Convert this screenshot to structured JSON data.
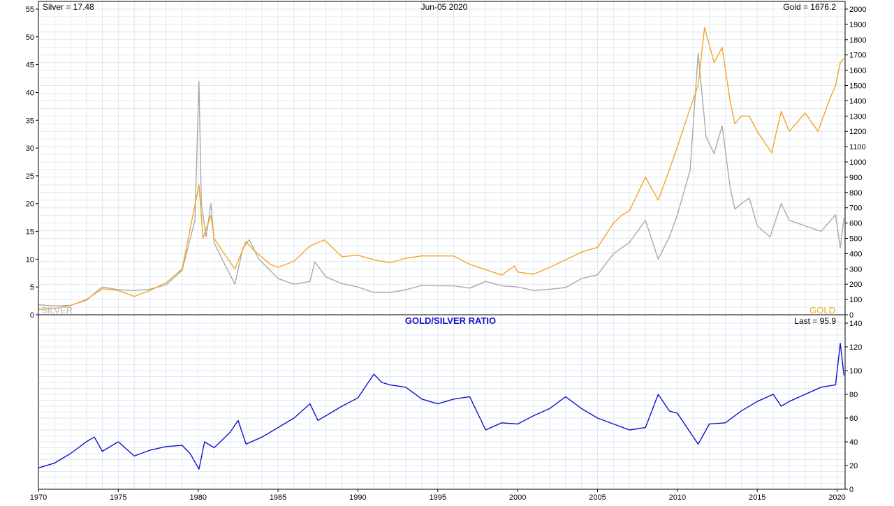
{
  "header": {
    "silver_readout": "Silver = 17.48",
    "date": "Jun-05  2020",
    "gold_readout": "Gold = 1676.2"
  },
  "lower_panel": {
    "title": "GOLD/SILVER RATIO",
    "last_readout": "Last = 95.9"
  },
  "legend": {
    "silver_label": "SILVER",
    "gold_label": "GOLD"
  },
  "colors": {
    "gold": "#f5a623",
    "silver": "#aaaaaa",
    "ratio": "#1111cc",
    "grid": "#dfe8f3",
    "axis": "#000000",
    "title_text": "#1111cc"
  },
  "chart_data": [
    {
      "type": "line",
      "title": "",
      "x_axis": {
        "type": "date",
        "range": [
          1970,
          2020.5
        ],
        "tick_labels": [
          "1970",
          "1975",
          "1980",
          "1985",
          "1990",
          "1995",
          "2000",
          "2005",
          "2010",
          "2015",
          "2020"
        ]
      },
      "y_axes": {
        "left": {
          "label": "",
          "range": [
            0,
            55
          ],
          "tick_labels": [
            "0",
            "5",
            "10",
            "15",
            "20",
            "25",
            "30",
            "35",
            "40",
            "45",
            "50",
            "55"
          ]
        },
        "right": {
          "label": "",
          "range": [
            0,
            2000
          ],
          "tick_labels": [
            "0",
            "100",
            "200",
            "300",
            "400",
            "500",
            "600",
            "700",
            "800",
            "900",
            "1000",
            "1100",
            "1200",
            "1300",
            "1400",
            "1500",
            "1600",
            "1700",
            "1800",
            "1900",
            "2000"
          ]
        }
      },
      "grid": true,
      "legend_placement": "bottom-left (SILVER) and bottom-right (GOLD)",
      "series": [
        {
          "name": "SILVER",
          "axis": "left",
          "points": [
            [
              1970,
              1.8
            ],
            [
              1971,
              1.6
            ],
            [
              1972,
              1.7
            ],
            [
              1973,
              2.6
            ],
            [
              1974,
              5
            ],
            [
              1975,
              4.5
            ],
            [
              1976,
              4.4
            ],
            [
              1977,
              4.6
            ],
            [
              1978,
              5.4
            ],
            [
              1979,
              8
            ],
            [
              1979.8,
              17
            ],
            [
              1980.05,
              42
            ],
            [
              1980.2,
              20
            ],
            [
              1980.5,
              14
            ],
            [
              1980.8,
              20
            ],
            [
              1981,
              13
            ],
            [
              1981.5,
              10
            ],
            [
              1982.3,
              5.5
            ],
            [
              1982.8,
              12
            ],
            [
              1983.2,
              13.5
            ],
            [
              1983.8,
              10
            ],
            [
              1984.5,
              8
            ],
            [
              1985,
              6.5
            ],
            [
              1986,
              5.5
            ],
            [
              1987,
              6
            ],
            [
              1987.3,
              9.5
            ],
            [
              1988,
              6.8
            ],
            [
              1989,
              5.6
            ],
            [
              1990,
              5
            ],
            [
              1991,
              4
            ],
            [
              1992,
              4
            ],
            [
              1993,
              4.5
            ],
            [
              1994,
              5.3
            ],
            [
              1995,
              5.2
            ],
            [
              1996,
              5.2
            ],
            [
              1997,
              4.8
            ],
            [
              1998,
              6
            ],
            [
              1999,
              5.2
            ],
            [
              2000,
              5
            ],
            [
              2001,
              4.4
            ],
            [
              2002,
              4.6
            ],
            [
              2003,
              4.9
            ],
            [
              2004,
              6.5
            ],
            [
              2005,
              7.2
            ],
            [
              2006,
              11
            ],
            [
              2007,
              13
            ],
            [
              2008,
              17
            ],
            [
              2008.8,
              10
            ],
            [
              2009.5,
              14
            ],
            [
              2010,
              18
            ],
            [
              2010.8,
              26
            ],
            [
              2011.3,
              47
            ],
            [
              2011.8,
              32
            ],
            [
              2012.3,
              29
            ],
            [
              2012.8,
              34
            ],
            [
              2013.3,
              23
            ],
            [
              2013.6,
              19
            ],
            [
              2014,
              20
            ],
            [
              2014.5,
              21
            ],
            [
              2015,
              16
            ],
            [
              2015.8,
              14
            ],
            [
              2016.5,
              20
            ],
            [
              2017,
              17
            ],
            [
              2018,
              16
            ],
            [
              2019,
              15
            ],
            [
              2019.9,
              18
            ],
            [
              2020.2,
              12
            ],
            [
              2020.43,
              17.48
            ]
          ]
        },
        {
          "name": "GOLD",
          "axis": "right",
          "points": [
            [
              1970,
              35
            ],
            [
              1971,
              40
            ],
            [
              1972,
              60
            ],
            [
              1973,
              100
            ],
            [
              1974,
              170
            ],
            [
              1975,
              160
            ],
            [
              1976,
              120
            ],
            [
              1977,
              160
            ],
            [
              1978,
              210
            ],
            [
              1979,
              300
            ],
            [
              1980.05,
              850
            ],
            [
              1980.3,
              500
            ],
            [
              1980.8,
              650
            ],
            [
              1981,
              500
            ],
            [
              1981.5,
              420
            ],
            [
              1982.3,
              300
            ],
            [
              1983,
              480
            ],
            [
              1983.5,
              420
            ],
            [
              1984.5,
              330
            ],
            [
              1985,
              310
            ],
            [
              1986,
              350
            ],
            [
              1987,
              450
            ],
            [
              1987.9,
              490
            ],
            [
              1988.5,
              430
            ],
            [
              1989,
              380
            ],
            [
              1990,
              390
            ],
            [
              1991,
              360
            ],
            [
              1992,
              340
            ],
            [
              1993,
              370
            ],
            [
              1994,
              385
            ],
            [
              1995,
              385
            ],
            [
              1996,
              385
            ],
            [
              1997,
              330
            ],
            [
              1998,
              295
            ],
            [
              1999,
              260
            ],
            [
              1999.8,
              320
            ],
            [
              2000,
              280
            ],
            [
              2001,
              265
            ],
            [
              2002,
              310
            ],
            [
              2003,
              360
            ],
            [
              2004,
              410
            ],
            [
              2005,
              440
            ],
            [
              2006,
              600
            ],
            [
              2006.5,
              650
            ],
            [
              2007,
              680
            ],
            [
              2008,
              900
            ],
            [
              2008.8,
              750
            ],
            [
              2009.5,
              950
            ],
            [
              2010,
              1100
            ],
            [
              2010.8,
              1350
            ],
            [
              2011.3,
              1500
            ],
            [
              2011.7,
              1880
            ],
            [
              2012.3,
              1650
            ],
            [
              2012.8,
              1750
            ],
            [
              2013.3,
              1400
            ],
            [
              2013.6,
              1250
            ],
            [
              2014,
              1300
            ],
            [
              2014.5,
              1300
            ],
            [
              2015,
              1200
            ],
            [
              2015.9,
              1060
            ],
            [
              2016.5,
              1330
            ],
            [
              2017,
              1200
            ],
            [
              2018,
              1320
            ],
            [
              2018.8,
              1200
            ],
            [
              2019.5,
              1400
            ],
            [
              2019.9,
              1500
            ],
            [
              2020.2,
              1650
            ],
            [
              2020.43,
              1676.2
            ]
          ]
        }
      ]
    },
    {
      "type": "line",
      "title": "GOLD/SILVER RATIO",
      "x_axis": {
        "type": "date",
        "range": [
          1970,
          2020.5
        ]
      },
      "y_axes": {
        "right": {
          "label": "",
          "range": [
            0,
            140
          ],
          "tick_labels": [
            "0",
            "20",
            "40",
            "60",
            "80",
            "100",
            "120",
            "140"
          ]
        }
      },
      "grid": true,
      "series": [
        {
          "name": "GOLD/SILVER RATIO",
          "axis": "right",
          "points": [
            [
              1970,
              18
            ],
            [
              1971,
              22
            ],
            [
              1972,
              30
            ],
            [
              1973,
              40
            ],
            [
              1973.5,
              44
            ],
            [
              1974,
              32
            ],
            [
              1975,
              40
            ],
            [
              1976,
              28
            ],
            [
              1977,
              33
            ],
            [
              1978,
              36
            ],
            [
              1979,
              37
            ],
            [
              1979.5,
              30
            ],
            [
              1980.05,
              17
            ],
            [
              1980.4,
              40
            ],
            [
              1981,
              35
            ],
            [
              1982,
              48
            ],
            [
              1982.5,
              58
            ],
            [
              1983,
              38
            ],
            [
              1984,
              44
            ],
            [
              1985,
              52
            ],
            [
              1986,
              60
            ],
            [
              1987,
              72
            ],
            [
              1987.5,
              58
            ],
            [
              1988,
              62
            ],
            [
              1989,
              70
            ],
            [
              1990,
              77
            ],
            [
              1991,
              97
            ],
            [
              1991.5,
              90
            ],
            [
              1992,
              88
            ],
            [
              1993,
              86
            ],
            [
              1994,
              76
            ],
            [
              1995,
              72
            ],
            [
              1996,
              76
            ],
            [
              1997,
              78
            ],
            [
              1998,
              50
            ],
            [
              1999,
              56
            ],
            [
              2000,
              55
            ],
            [
              2001,
              62
            ],
            [
              2002,
              68
            ],
            [
              2003,
              78
            ],
            [
              2004,
              68
            ],
            [
              2005,
              60
            ],
            [
              2006,
              55
            ],
            [
              2007,
              50
            ],
            [
              2008,
              52
            ],
            [
              2008.8,
              80
            ],
            [
              2009.5,
              66
            ],
            [
              2010,
              64
            ],
            [
              2011.3,
              38
            ],
            [
              2012,
              55
            ],
            [
              2013,
              56
            ],
            [
              2014,
              66
            ],
            [
              2015,
              74
            ],
            [
              2016,
              80
            ],
            [
              2016.5,
              70
            ],
            [
              2017,
              74
            ],
            [
              2018,
              80
            ],
            [
              2019,
              86
            ],
            [
              2019.9,
              88
            ],
            [
              2020.2,
              123
            ],
            [
              2020.43,
              95.9
            ]
          ]
        }
      ]
    }
  ]
}
